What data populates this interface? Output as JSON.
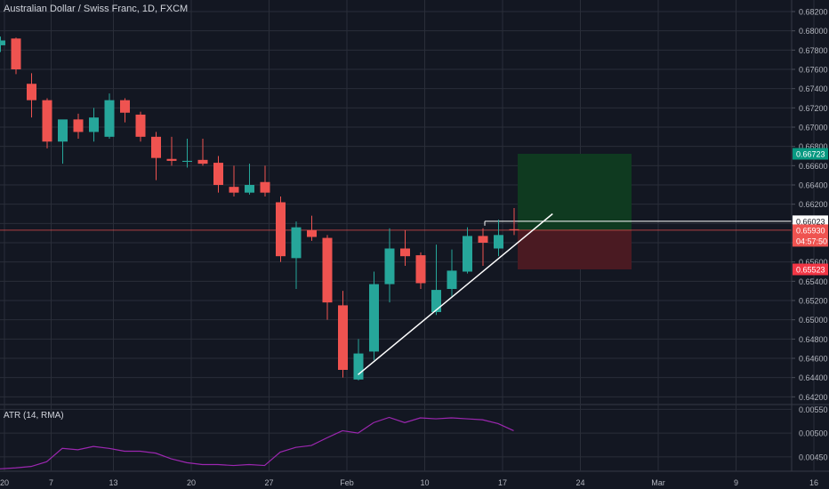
{
  "header": {
    "title": "Australian Dollar / Swiss Franc, 1D, FXCM"
  },
  "indicator": {
    "label": "ATR (14, RMA)"
  },
  "colors": {
    "background": "#131722",
    "up": "#26a69a",
    "down": "#ef5350",
    "grid": "#2a2e39",
    "axis_text": "#b2b5be",
    "trendline": "#ffffff",
    "atr": "#9c27b0",
    "target_zone": "#0f3a20",
    "stop_zone": "#4a1a22",
    "badge_target": "#089981",
    "badge_price": "#ef5350",
    "badge_stop": "#f23645",
    "badge_level": "#ffffff"
  },
  "price_axis": {
    "ticks": [
      "0.68200",
      "0.68000",
      "0.67800",
      "0.67600",
      "0.67400",
      "0.67200",
      "0.67000",
      "0.66800",
      "0.66600",
      "0.66400",
      "0.66200",
      "0.66000",
      "0.65800",
      "0.65600",
      "0.65400",
      "0.65200",
      "0.65000",
      "0.64800",
      "0.64600",
      "0.64400",
      "0.64200"
    ],
    "badges": {
      "target": "0.66723",
      "level": "0.66023",
      "last_price": "0.65930",
      "countdown": "04:57:50",
      "stop": "0.65523"
    }
  },
  "atr_axis": {
    "ticks": [
      "0.00550",
      "0.00500",
      "0.00450"
    ]
  },
  "time_axis": {
    "ticks": [
      "20",
      "7",
      "13",
      "20",
      "27",
      "Feb",
      "10",
      "17",
      "24",
      "Mar",
      "9",
      "16"
    ]
  },
  "chart_data": [
    {
      "type": "candlestick",
      "title": "Australian Dollar / Swiss Franc, 1D, FXCM",
      "ylim": [
        0.6412,
        0.6832
      ],
      "columns": [
        "open",
        "high",
        "low",
        "close"
      ],
      "candles": [
        [
          0.6785,
          0.6794,
          0.6778,
          0.679
        ],
        [
          0.6792,
          0.6793,
          0.6755,
          0.676
        ],
        [
          0.6745,
          0.6756,
          0.671,
          0.6728
        ],
        [
          0.6728,
          0.673,
          0.6678,
          0.6685
        ],
        [
          0.6685,
          0.6705,
          0.6662,
          0.6708
        ],
        [
          0.6708,
          0.6714,
          0.6688,
          0.6695
        ],
        [
          0.6695,
          0.672,
          0.6685,
          0.671
        ],
        [
          0.669,
          0.6735,
          0.6688,
          0.6728
        ],
        [
          0.6728,
          0.673,
          0.6705,
          0.6715
        ],
        [
          0.6713,
          0.6716,
          0.6685,
          0.669
        ],
        [
          0.669,
          0.6695,
          0.6645,
          0.6668
        ],
        [
          0.6667,
          0.669,
          0.666,
          0.6665
        ],
        [
          0.6664,
          0.6688,
          0.6658,
          0.6665
        ],
        [
          0.6666,
          0.6688,
          0.666,
          0.6662
        ],
        [
          0.6663,
          0.667,
          0.6632,
          0.664
        ],
        [
          0.6638,
          0.666,
          0.6628,
          0.6632
        ],
        [
          0.6632,
          0.6662,
          0.663,
          0.664
        ],
        [
          0.6643,
          0.666,
          0.6628,
          0.6632
        ],
        [
          0.6622,
          0.6628,
          0.656,
          0.6566
        ],
        [
          0.6564,
          0.6602,
          0.6532,
          0.6596
        ],
        [
          0.6593,
          0.6608,
          0.6582,
          0.6586
        ],
        [
          0.6585,
          0.6588,
          0.65,
          0.6518
        ],
        [
          0.6515,
          0.653,
          0.644,
          0.6448
        ],
        [
          0.6438,
          0.648,
          0.6437,
          0.6465
        ],
        [
          0.6467,
          0.655,
          0.6458,
          0.6537
        ],
        [
          0.6537,
          0.6595,
          0.6518,
          0.6574
        ],
        [
          0.6574,
          0.6593,
          0.6556,
          0.6566
        ],
        [
          0.6567,
          0.657,
          0.6532,
          0.6538
        ],
        [
          0.6508,
          0.6578,
          0.6505,
          0.6531
        ],
        [
          0.6532,
          0.6573,
          0.6524,
          0.6551
        ],
        [
          0.655,
          0.6596,
          0.6548,
          0.6587
        ],
        [
          0.6587,
          0.6595,
          0.6556,
          0.658
        ],
        [
          0.6574,
          0.6604,
          0.6566,
          0.6588
        ],
        [
          0.6594,
          0.6616,
          0.6588,
          0.6593
        ]
      ],
      "annotations": {
        "horizontal_level": 0.66023,
        "last_price": 0.6593,
        "target": 0.66723,
        "stop": 0.65523,
        "trendline": [
          [
            23,
            0.6443
          ],
          [
            35.5,
            0.661
          ]
        ]
      }
    },
    {
      "type": "line",
      "title": "ATR (14, RMA)",
      "ylim": [
        0.0042,
        0.0056
      ],
      "series": [
        {
          "name": "ATR (14, RMA)",
          "values": [
            0.00425,
            0.00427,
            0.0043,
            0.0044,
            0.00468,
            0.00465,
            0.00472,
            0.00468,
            0.00462,
            0.00462,
            0.00458,
            0.00446,
            0.00438,
            0.00434,
            0.00434,
            0.00432,
            0.00434,
            0.00432,
            0.0046,
            0.0047,
            0.00474,
            0.0049,
            0.00505,
            0.005,
            0.00522,
            0.00533,
            0.00522,
            0.00532,
            0.0053,
            0.00532,
            0.0053,
            0.00528,
            0.0052,
            0.00505
          ]
        }
      ]
    }
  ]
}
